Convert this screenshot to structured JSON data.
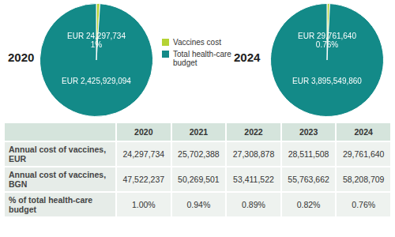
{
  "chart_data": [
    {
      "type": "pie",
      "title": "2020",
      "categories": [
        "Vaccines cost",
        "Total health-care budget"
      ],
      "values": [
        24297734,
        2425929094
      ],
      "value_labels": [
        "EUR 24,297,734",
        "EUR 2,425,929,094"
      ],
      "annotation": {
        "value": 1,
        "label": "1%"
      },
      "colors": [
        "#b5d334",
        "#138a88"
      ],
      "data_labels": true,
      "legend": "right"
    },
    {
      "type": "pie",
      "title": "2024",
      "categories": [
        "Vaccines cost",
        "Total health-care budget"
      ],
      "values": [
        29761640,
        3895549860
      ],
      "value_labels": [
        "EUR 29,761,640",
        "EUR 3,895,549,860"
      ],
      "annotation": {
        "value": 0.76,
        "label": "0.76%"
      },
      "colors": [
        "#b5d334",
        "#138a88"
      ],
      "data_labels": true
    }
  ],
  "table": {
    "columns": [
      "2020",
      "2021",
      "2022",
      "2023",
      "2024"
    ],
    "rows": [
      [
        "Annual cost of vaccines, EUR",
        "24,297,734",
        "25,702,388",
        "27,308,878",
        "28,511,508",
        "29,761,640"
      ],
      [
        "Annual cost of vaccines, BGN",
        "47,522,237",
        "50,269,501",
        "53,411,522",
        "55,763,662",
        "58,208,709"
      ],
      [
        "% of total health-care budget",
        "1.00%",
        "0.94%",
        "0.89%",
        "0.82%",
        "0.76%"
      ]
    ]
  }
}
